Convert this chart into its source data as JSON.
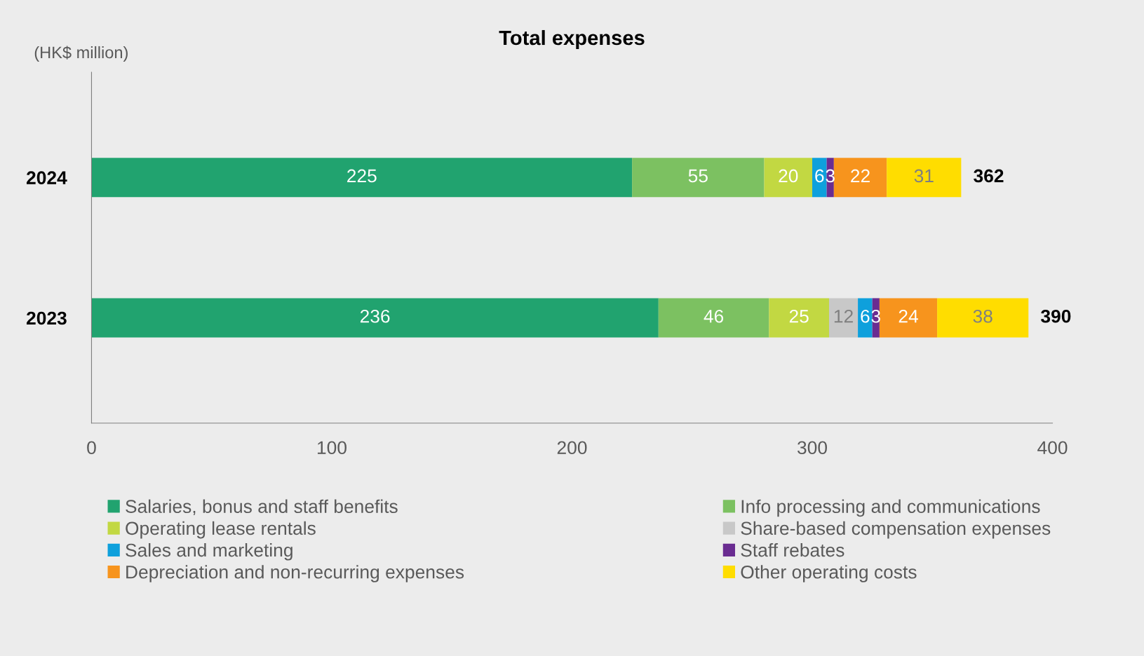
{
  "chart_data": {
    "type": "bar",
    "orientation": "horizontal",
    "stacked": true,
    "title": "Total expenses",
    "ylabel": "(HK$ million)",
    "categories": [
      "2024",
      "2023"
    ],
    "series": [
      {
        "name": "Salaries, bonus and staff benefits",
        "color": "#21a36f",
        "values": [
          225,
          236
        ],
        "value_labels": [
          "225",
          "236"
        ]
      },
      {
        "name": "Info processing and communications",
        "color": "#7cc161",
        "values": [
          55,
          46
        ],
        "value_labels": [
          "55",
          "46"
        ]
      },
      {
        "name": "Operating lease rentals",
        "color": "#c2d842",
        "values": [
          20,
          25
        ],
        "value_labels": [
          "20",
          "25"
        ]
      },
      {
        "name": "Share-based compensation expenses",
        "color": "#c8c8c8",
        "values": [
          0,
          12
        ],
        "value_labels": [
          null,
          "12"
        ]
      },
      {
        "name": "Sales and marketing",
        "color": "#0ea0dc",
        "values": [
          6,
          6
        ],
        "value_labels": [
          "6",
          "6"
        ]
      },
      {
        "name": "Staff rebates",
        "color": "#6a2c91",
        "values": [
          3,
          3
        ],
        "value_labels": [
          "3",
          "3"
        ]
      },
      {
        "name": "Depreciation and non-recurring expenses",
        "color": "#f7941d",
        "values": [
          22,
          24
        ],
        "value_labels": [
          "22",
          "24"
        ]
      },
      {
        "name": "Other operating costs",
        "color": "#ffdd00",
        "values": [
          31,
          38
        ],
        "value_labels": [
          "31",
          "38"
        ]
      }
    ],
    "totals": [
      "362",
      "390"
    ],
    "xlim": [
      0,
      400
    ],
    "xticks": [
      0,
      100,
      200,
      300,
      400
    ],
    "grid": false,
    "legend": "bottom"
  }
}
